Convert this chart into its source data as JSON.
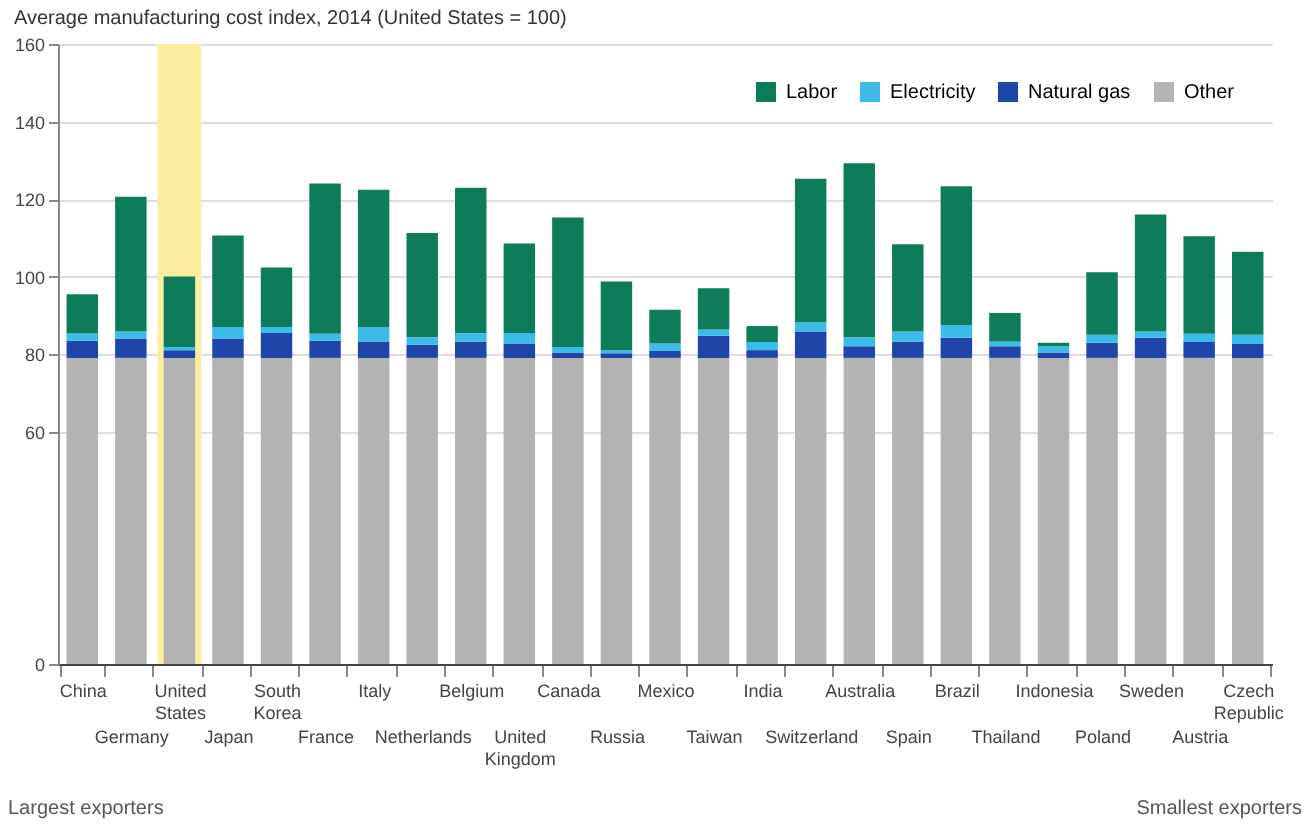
{
  "chart_data": {
    "type": "bar",
    "title": "Average manufacturing cost index, 2014 (United States = 100)",
    "categories": [
      "China",
      "Germany",
      "United States",
      "Japan",
      "South Korea",
      "France",
      "Italy",
      "Netherlands",
      "Belgium",
      "United Kingdom",
      "Canada",
      "Russia",
      "Mexico",
      "Taiwan",
      "India",
      "Switzerland",
      "Australia",
      "Spain",
      "Brazil",
      "Thailand",
      "Indonesia",
      "Poland",
      "Sweden",
      "Austria",
      "Czech Republic"
    ],
    "series": [
      {
        "name": "Other",
        "color": "#b3b3b3",
        "values": [
          79,
          79,
          79,
          79,
          79,
          79,
          79,
          79,
          79,
          79,
          79,
          79,
          79,
          79,
          79,
          79,
          79,
          79,
          79,
          79,
          79,
          79,
          79,
          79,
          79
        ]
      },
      {
        "name": "Natural gas",
        "color": "#1f45a8",
        "values": [
          4.4,
          5,
          2,
          5,
          6.4,
          4.4,
          4.2,
          3.4,
          4.2,
          3.7,
          1.4,
          1.2,
          1.8,
          5.7,
          2,
          6.8,
          3,
          4.2,
          5.2,
          3,
          1.4,
          3.9,
          5.2,
          4.1,
          3.6
        ]
      },
      {
        "name": "Electricity",
        "color": "#3dbbe8",
        "values": [
          1.9,
          1.8,
          0.8,
          3,
          1.6,
          1.8,
          3.8,
          1.9,
          2.2,
          2.7,
          1.4,
          0.8,
          1.9,
          1.6,
          2.1,
          2.4,
          2.3,
          2.6,
          3.3,
          1.2,
          1.6,
          2.1,
          1.6,
          2.1,
          2.4
        ]
      },
      {
        "name": "Labor",
        "color": "#0e7c5b",
        "values": [
          10.1,
          34.8,
          18.2,
          23.6,
          15.3,
          38.8,
          35.4,
          26.9,
          37.5,
          23.1,
          33.4,
          17.7,
          8.7,
          10.7,
          4.1,
          37,
          44.9,
          22.5,
          35.8,
          7.4,
          0.9,
          16.1,
          30.2,
          25.2,
          21.4
        ]
      }
    ],
    "stacked": true,
    "ylim": [
      0,
      160
    ],
    "yticks": [
      0,
      60,
      80,
      100,
      120,
      140,
      160
    ],
    "grid": "y",
    "legend": "top right",
    "bands": [
      {
        "axis": "x",
        "from": "United States",
        "to": "United States",
        "color": "#fbeea0"
      }
    ],
    "annotations": [
      "Largest exporters",
      "Smallest exporters"
    ]
  }
}
